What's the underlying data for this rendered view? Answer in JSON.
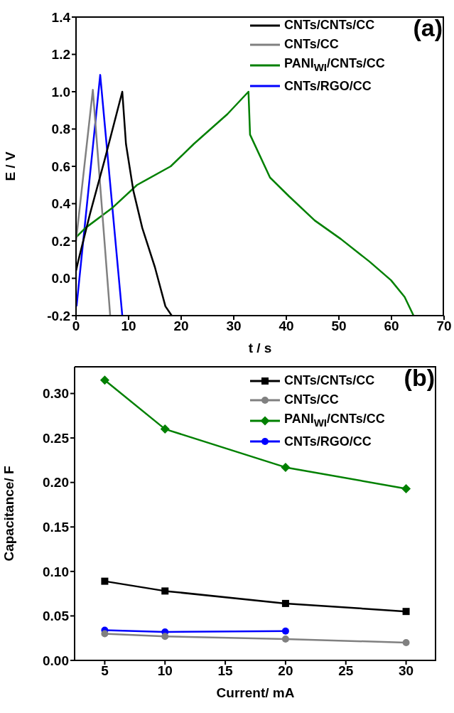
{
  "chart_data": [
    {
      "type": "line",
      "xlabel": "t / s",
      "ylabel": "E / V",
      "xlim": [
        0,
        70
      ],
      "xticks": [
        0,
        10,
        20,
        30,
        40,
        50,
        60,
        70
      ],
      "ylim": [
        -0.2,
        1.4
      ],
      "yticks": [
        {
          "value": -0.2,
          "label": "-0.2"
        },
        {
          "value": 0,
          "label": "0.0"
        },
        {
          "value": 0.2,
          "label": "0.2"
        },
        {
          "value": 0.4,
          "label": "0.4"
        },
        {
          "value": 0.6,
          "label": "0.6"
        },
        {
          "value": 0.8,
          "label": "0.8"
        },
        {
          "value": 1,
          "label": "1.0"
        },
        {
          "value": 1.2,
          "label": "1.2"
        },
        {
          "value": 1.4,
          "label": "1.4"
        }
      ],
      "grid": false,
      "legend": "top right",
      "annotations": [
        "(a)"
      ],
      "series": [
        {
          "name": "CNTs/CNTs/CC",
          "color": "#000000",
          "x": [
            0,
            0.4,
            2.7,
            5.4,
            8.8,
            9.5,
            10.9,
            12.6,
            15,
            17,
            18.2
          ],
          "values": [
            0.04,
            0.09,
            0.35,
            0.63,
            1.0,
            0.72,
            0.47,
            0.27,
            0.06,
            -0.15,
            -0.2
          ]
        },
        {
          "name": "CNTs/CC",
          "color": "#808080",
          "x": [
            0,
            3.2,
            6.5
          ],
          "values": [
            0.2,
            1.01,
            -0.2
          ]
        },
        {
          "name": "PANI$_{WI}$/CNTs/CC",
          "color": "#008000",
          "x": [
            0,
            1.8,
            6.8,
            11.6,
            18,
            22.4,
            28.8,
            32.8,
            33.1,
            36.9,
            40.5,
            45.4,
            50.4,
            55.8,
            59.9,
            62.5,
            64.2
          ],
          "values": [
            0.22,
            0.27,
            0.375,
            0.5,
            0.6,
            0.72,
            0.88,
            1.0,
            0.77,
            0.54,
            0.44,
            0.31,
            0.21,
            0.09,
            -0.01,
            -0.1,
            -0.2
          ]
        },
        {
          "name": "CNTs/RGO/CC",
          "color": "#0000ff",
          "x": [
            0.1,
            4.6,
            8.8
          ],
          "values": [
            -0.15,
            1.09,
            -0.2
          ]
        }
      ]
    },
    {
      "type": "line",
      "xlabel": "Current/ mA",
      "ylabel": "Capacitance/ F",
      "xlim": [
        2.5,
        32.5
      ],
      "xticks": [
        5,
        10,
        15,
        20,
        25,
        30
      ],
      "ylim": [
        0,
        0.33
      ],
      "yticks": [
        {
          "value": 0,
          "label": "0.00"
        },
        {
          "value": 0.05,
          "label": "0.05"
        },
        {
          "value": 0.1,
          "label": "0.10"
        },
        {
          "value": 0.15,
          "label": "0.15"
        },
        {
          "value": 0.2,
          "label": "0.20"
        },
        {
          "value": 0.25,
          "label": "0.25"
        },
        {
          "value": 0.3,
          "label": "0.30"
        }
      ],
      "grid": false,
      "legend": "top right",
      "annotations": [
        "(b)"
      ],
      "series": [
        {
          "name": "CNTs/CNTs/CC",
          "color": "#000000",
          "marker": "square",
          "x": [
            5,
            10,
            20,
            30
          ],
          "values": [
            0.089,
            0.078,
            0.064,
            0.055
          ]
        },
        {
          "name": "CNTs/CC",
          "color": "#808080",
          "marker": "circle",
          "x": [
            5,
            10,
            20,
            30
          ],
          "values": [
            0.03,
            0.027,
            0.024,
            0.02
          ]
        },
        {
          "name": "PANI$_{WI}$/CNTs/CC",
          "color": "#008000",
          "marker": "diamond",
          "x": [
            5,
            10,
            20,
            30
          ],
          "values": [
            0.315,
            0.26,
            0.217,
            0.193
          ]
        },
        {
          "name": "CNTs/RGO/CC",
          "color": "#0000ff",
          "marker": "circle",
          "x": [
            5,
            10,
            20
          ],
          "values": [
            0.034,
            0.032,
            0.033
          ]
        }
      ]
    }
  ]
}
